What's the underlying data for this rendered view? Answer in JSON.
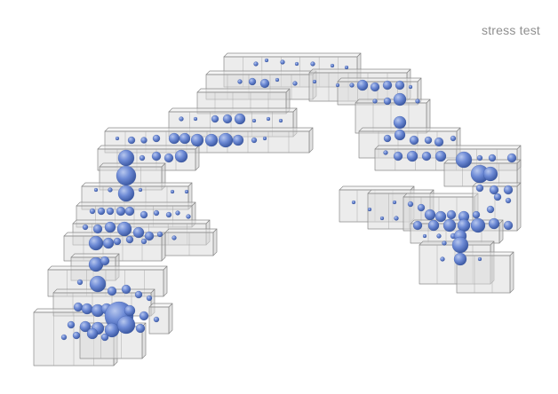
{
  "caption": "stress test",
  "colors": {
    "background": "#ffffff",
    "caption": "#8f8f8f",
    "box_edge": "#8a8a8a",
    "box_fill": "#dddddd",
    "sphere_light": "#9fb4e6",
    "sphere_mid": "#5f7fcf",
    "sphere_dark": "#35549e"
  }
}
